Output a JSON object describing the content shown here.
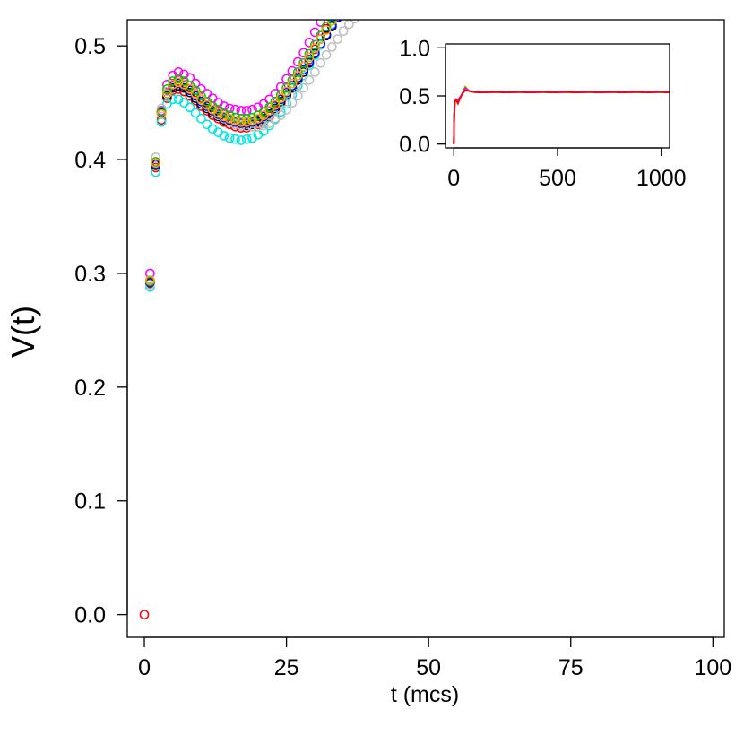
{
  "chart_data": [
    {
      "type": "scatter",
      "title": "",
      "xlabel": "t (mcs)",
      "ylabel": "V(t)",
      "xlim": [
        -3,
        102
      ],
      "ylim": [
        -0.02,
        0.523
      ],
      "xticks": [
        "0",
        "25",
        "50",
        "75",
        "100"
      ],
      "yticks": [
        "0.0",
        "0.1",
        "0.2",
        "0.3",
        "0.4",
        "0.5"
      ],
      "grid": false,
      "legend": "none",
      "x": [
        0,
        1,
        2,
        3,
        4,
        5,
        6,
        7,
        8,
        9,
        10,
        11,
        12,
        13,
        14,
        15,
        16,
        17,
        18,
        19,
        20,
        21,
        22,
        23,
        24,
        25,
        26,
        27,
        28,
        29,
        30,
        31,
        32,
        33,
        34,
        35,
        36,
        37,
        38,
        39
      ],
      "series": [
        {
          "color": "#ff0000",
          "values": [
            0.0,
            0.291,
            0.393,
            0.435,
            0.454,
            0.461,
            0.462,
            0.46,
            0.456,
            0.452,
            0.447,
            0.443,
            0.439,
            0.436,
            0.433,
            0.431,
            0.429,
            0.428,
            0.428,
            0.429,
            0.431,
            0.434,
            0.438,
            0.443,
            0.449,
            0.456,
            0.463,
            0.471,
            0.479,
            0.488,
            0.497,
            0.506,
            0.515,
            0.524,
            null,
            null,
            null,
            null,
            null,
            null
          ]
        },
        {
          "color": "#000000",
          "values": [
            null,
            0.293,
            0.395,
            0.442,
            0.456,
            0.463,
            0.465,
            0.463,
            0.459,
            0.454,
            0.449,
            0.445,
            0.441,
            0.438,
            0.435,
            0.433,
            0.431,
            0.43,
            0.43,
            0.431,
            0.433,
            0.436,
            0.44,
            0.445,
            0.451,
            0.457,
            0.463,
            0.47,
            0.477,
            0.485,
            0.493,
            0.501,
            0.509,
            0.517,
            0.525,
            null,
            null,
            null,
            null,
            null
          ]
        },
        {
          "color": "#ff00ff",
          "values": [
            null,
            0.3,
            0.398,
            0.443,
            0.466,
            0.474,
            0.477,
            0.475,
            0.472,
            0.467,
            0.462,
            0.458,
            0.454,
            0.45,
            0.447,
            0.445,
            0.444,
            0.443,
            0.443,
            0.444,
            0.446,
            0.449,
            0.453,
            0.458,
            0.464,
            0.471,
            0.478,
            0.486,
            0.494,
            0.503,
            0.512,
            0.521,
            null,
            null,
            null,
            null,
            null,
            null,
            null,
            null
          ]
        },
        {
          "color": "#00e5e5",
          "values": [
            null,
            0.288,
            0.389,
            0.433,
            0.449,
            0.453,
            0.453,
            0.45,
            0.446,
            0.441,
            0.436,
            0.431,
            0.427,
            0.424,
            0.421,
            0.419,
            0.418,
            0.417,
            0.418,
            0.419,
            0.422,
            0.425,
            0.43,
            0.436,
            0.442,
            0.449,
            0.457,
            0.465,
            0.474,
            0.483,
            0.492,
            0.501,
            0.51,
            0.519,
            null,
            null,
            null,
            null,
            null,
            null
          ]
        },
        {
          "color": "#bebebe",
          "values": [
            null,
            0.29,
            0.402,
            0.445,
            0.46,
            0.466,
            0.468,
            0.466,
            0.462,
            0.457,
            0.452,
            0.447,
            0.443,
            0.439,
            0.436,
            0.433,
            0.431,
            0.43,
            0.429,
            0.429,
            0.429,
            0.43,
            0.432,
            0.435,
            0.439,
            0.444,
            0.45,
            0.456,
            0.463,
            0.47,
            0.477,
            0.485,
            0.492,
            0.499,
            0.506,
            0.513,
            0.519,
            0.524,
            null,
            null
          ]
        },
        {
          "color": "#0000ff",
          "values": [
            null,
            0.292,
            0.396,
            0.441,
            0.458,
            0.465,
            0.467,
            0.465,
            0.461,
            0.456,
            0.451,
            0.447,
            0.443,
            0.44,
            0.437,
            0.435,
            0.433,
            0.432,
            0.432,
            0.433,
            0.435,
            0.438,
            0.442,
            0.447,
            0.453,
            0.459,
            0.465,
            0.472,
            0.479,
            0.486,
            0.494,
            0.502,
            0.51,
            0.518,
            0.525,
            null,
            null,
            null,
            null,
            null
          ]
        },
        {
          "color": "#00cd00",
          "values": [
            null,
            0.293,
            0.398,
            0.442,
            0.462,
            0.469,
            0.471,
            0.469,
            0.465,
            0.461,
            0.456,
            0.451,
            0.447,
            0.444,
            0.441,
            0.439,
            0.437,
            0.436,
            0.436,
            0.437,
            0.439,
            0.442,
            0.446,
            0.451,
            0.457,
            0.463,
            0.47,
            0.477,
            0.485,
            0.493,
            0.501,
            0.509,
            0.517,
            0.524,
            null,
            null,
            null,
            null,
            null,
            null
          ]
        },
        {
          "color": "#ffa500",
          "values": [
            null,
            0.294,
            0.397,
            0.44,
            0.458,
            0.466,
            0.468,
            0.466,
            0.462,
            0.458,
            0.453,
            0.448,
            0.444,
            0.441,
            0.438,
            0.436,
            0.434,
            0.433,
            0.433,
            0.434,
            0.436,
            0.439,
            0.443,
            0.448,
            0.454,
            0.46,
            0.467,
            0.474,
            0.482,
            0.49,
            0.498,
            0.506,
            0.514,
            0.522,
            null,
            null,
            null,
            null,
            null,
            null
          ]
        }
      ]
    },
    {
      "type": "line",
      "title": "",
      "xlabel": "",
      "ylabel": "",
      "xlim": [
        -40,
        1040
      ],
      "ylim": [
        -0.04,
        1.04
      ],
      "xticks": [
        "0",
        "500",
        "1000"
      ],
      "yticks": [
        "0.0",
        "0.5",
        "1.0"
      ],
      "grid": false,
      "legend": "none",
      "placement": "top-right inset",
      "plateau": 0.54,
      "series": [
        {
          "color": "#ffd700",
          "peak": 0.6,
          "dip": 0.44
        },
        {
          "color": "#000000",
          "peak": 0.57,
          "dip": 0.43
        },
        {
          "color": "#0000ff",
          "peak": 0.58,
          "dip": 0.44
        },
        {
          "color": "#00cd00",
          "peak": 0.59,
          "dip": 0.45
        },
        {
          "color": "#ff00ff",
          "peak": 0.58,
          "dip": 0.46
        },
        {
          "color": "#ff0000",
          "peak": 0.56,
          "dip": 0.42
        }
      ]
    }
  ]
}
